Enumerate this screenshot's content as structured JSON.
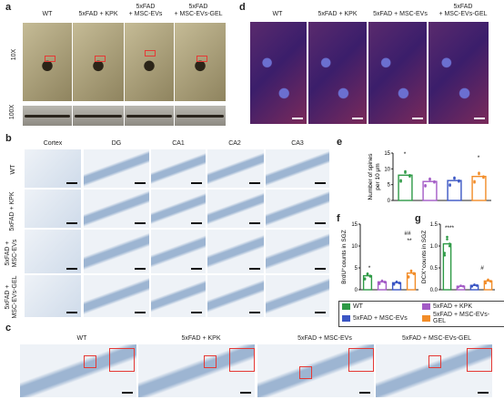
{
  "panels": {
    "a": {
      "label": "a",
      "columns": [
        "WT",
        "5xFAD + KPK",
        "5xFAD\n+ MSC-EVs",
        "5xFAD\n+ MSC-EVs-GEL"
      ],
      "row_labels": [
        "10X",
        "100X"
      ]
    },
    "b": {
      "label": "b",
      "columns": [
        "Cortex",
        "DG",
        "CA1",
        "CA2",
        "CA3"
      ],
      "rows": [
        "WT",
        "5xFAD + KPK",
        "5xFAD +\nMSC-EVs",
        "5xFAD +\nMSC-EVs-GEL"
      ]
    },
    "c": {
      "label": "c",
      "columns": [
        "WT",
        "5xFAD + KPK",
        "5xFAD + MSC-EVs",
        "5xFAD + MSC-EVs-GEL"
      ]
    },
    "d": {
      "label": "d",
      "columns": [
        "WT",
        "5xFAD + KPK",
        "5xFAD + MSC-EVs",
        "5xFAD\n+ MSC-EVs-GEL"
      ]
    },
    "e": {
      "label": "e",
      "ylabel": "Number of spines\nper 10 μm",
      "yticks": [
        "0",
        "5",
        "10",
        "15"
      ]
    },
    "f": {
      "label": "f",
      "ylabel": "BrdU⁺counts in SGZ",
      "yticks": [
        "0",
        "5",
        "10",
        "15"
      ],
      "annot": [
        "##",
        "**",
        "*"
      ]
    },
    "g": {
      "label": "g",
      "ylabel": "DCX⁺counts in SGZ",
      "yticks": [
        "0.0",
        "0.5",
        "1.0",
        "1.5"
      ],
      "annot": [
        "****",
        "#"
      ]
    }
  },
  "legend": [
    {
      "name": "WT",
      "color": "#2e9a46"
    },
    {
      "name": "5xFAD + KPK",
      "color": "#a35bc6"
    },
    {
      "name": "5xFAD + MSC-EVs",
      "color": "#3b56c4"
    },
    {
      "name": "5xFAD + MSC-EVs-GEL",
      "color": "#f28c28"
    }
  ],
  "chart_data": [
    {
      "type": "bar",
      "panel": "e",
      "categories": [
        "WT",
        "5xFAD + KPK",
        "5xFAD + MSC-EVs",
        "5xFAD + MSC-EVs-GEL"
      ],
      "values": [
        8.0,
        6.0,
        6.3,
        7.6
      ],
      "ylim": [
        0,
        15
      ]
    },
    {
      "type": "bar",
      "panel": "f",
      "categories": [
        "WT",
        "5xFAD + KPK",
        "5xFAD + MSC-EVs",
        "5xFAD + MSC-EVs-GEL"
      ],
      "values": [
        3.2,
        1.8,
        1.6,
        3.8
      ],
      "ylim": [
        0,
        15
      ]
    },
    {
      "type": "bar",
      "panel": "g",
      "categories": [
        "WT",
        "5xFAD + KPK",
        "5xFAD + MSC-EVs",
        "5xFAD + MSC-EVs-GEL"
      ],
      "values": [
        1.05,
        0.08,
        0.1,
        0.2
      ],
      "ylim": [
        0,
        1.5
      ]
    }
  ]
}
